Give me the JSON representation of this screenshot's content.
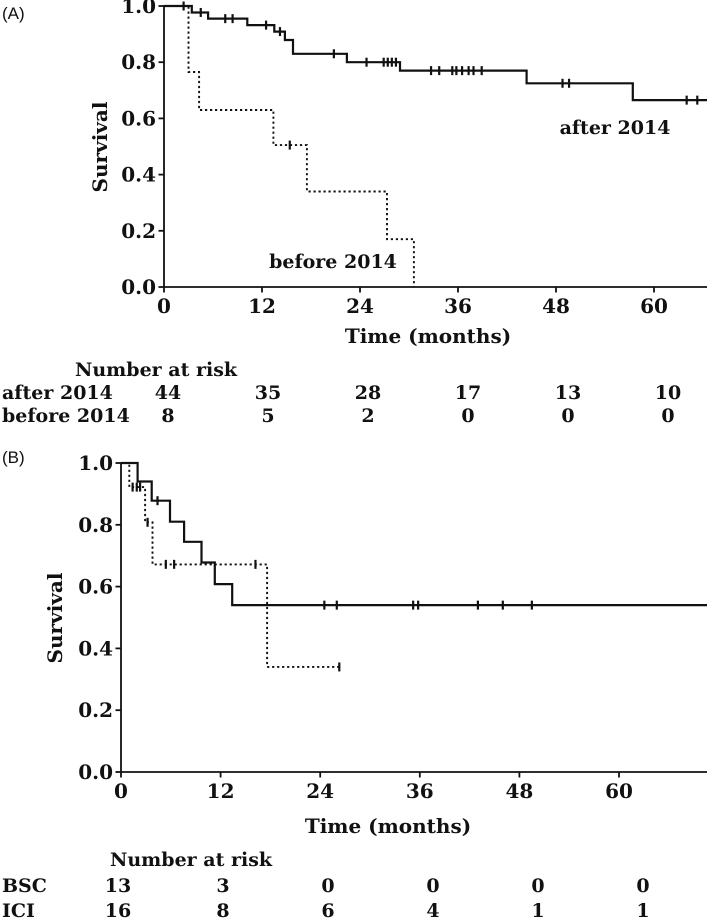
{
  "figure_colors": {
    "line": "#111111",
    "background": "#ffffff"
  },
  "chart_data": [
    {
      "id": "A",
      "panel": "(A)",
      "type": "line",
      "subtype": "kaplan-meier-step",
      "xlabel": "Time (months)",
      "ylabel": "Survival",
      "xticks": [
        0,
        12,
        24,
        36,
        48,
        60
      ],
      "ytick_labels": [
        "1.0",
        "0.8",
        "0.6",
        "0.4",
        "0.2",
        "0.0"
      ],
      "xlim": [
        0,
        66.5
      ],
      "ylim": [
        0.0,
        1.0
      ],
      "grid": false,
      "series": [
        {
          "name": "after 2014",
          "line_style": "solid",
          "start": 1.0,
          "end": 66.5,
          "steps": [
            [
              3.4,
              0.977
            ],
            [
              5.4,
              0.955
            ],
            [
              10.2,
              0.932
            ],
            [
              13.5,
              0.909
            ],
            [
              14.8,
              0.879
            ],
            [
              15.8,
              0.83
            ],
            [
              22.4,
              0.8
            ],
            [
              28.9,
              0.77
            ],
            [
              44.4,
              0.725
            ],
            [
              57.4,
              0.665
            ]
          ],
          "censors": [
            [
              2.4,
              1.0
            ],
            [
              4.5,
              0.977
            ],
            [
              7.5,
              0.955
            ],
            [
              8.4,
              0.955
            ],
            [
              12.5,
              0.932
            ],
            [
              14.2,
              0.909
            ],
            [
              20.8,
              0.83
            ],
            [
              24.8,
              0.8
            ],
            [
              26.9,
              0.8
            ],
            [
              27.4,
              0.8
            ],
            [
              27.9,
              0.8
            ],
            [
              28.4,
              0.8
            ],
            [
              32.7,
              0.77
            ],
            [
              33.7,
              0.77
            ],
            [
              35.3,
              0.77
            ],
            [
              35.8,
              0.77
            ],
            [
              36.5,
              0.77
            ],
            [
              37.3,
              0.77
            ],
            [
              37.9,
              0.77
            ],
            [
              38.9,
              0.77
            ],
            [
              48.8,
              0.725
            ],
            [
              49.6,
              0.725
            ],
            [
              64.0,
              0.665
            ],
            [
              65.3,
              0.665
            ]
          ],
          "label": {
            "text": "after 2014"
          }
        },
        {
          "name": "before 2014",
          "line_style": "dotted",
          "start": 1.0,
          "end": 30.6,
          "steps": [
            [
              3.0,
              0.765
            ],
            [
              4.3,
              0.63
            ],
            [
              13.4,
              0.505
            ],
            [
              17.5,
              0.34
            ],
            [
              27.3,
              0.17
            ],
            [
              30.6,
              0.0
            ]
          ],
          "censors": [
            [
              15.4,
              0.505
            ]
          ],
          "label": {
            "text": "before 2014"
          }
        }
      ],
      "at_risk": {
        "header": "Number at risk",
        "time_points": [
          0,
          12,
          24,
          36,
          48,
          60
        ],
        "rows": [
          {
            "label": "after 2014",
            "counts": [
              44,
              35,
              28,
              17,
              13,
              10
            ]
          },
          {
            "label": "before 2014",
            "counts": [
              8,
              5,
              2,
              0,
              0,
              0
            ]
          }
        ]
      }
    },
    {
      "id": "B",
      "panel": "(B)",
      "type": "line",
      "subtype": "kaplan-meier-step",
      "xlabel": "Time (months)",
      "ylabel": "Survival",
      "xticks": [
        0,
        12,
        24,
        36,
        48,
        60
      ],
      "ytick_labels": [
        "1.0",
        "0.8",
        "0.6",
        "0.4",
        "0.2",
        "0.0"
      ],
      "xlim": [
        0,
        70.6
      ],
      "ylim": [
        0.0,
        1.0
      ],
      "grid": false,
      "series": [
        {
          "name": "ICI",
          "line_style": "solid",
          "start": 1.0,
          "end": 70.6,
          "steps": [
            [
              2.0,
              0.94
            ],
            [
              3.7,
              0.878
            ],
            [
              5.9,
              0.81
            ],
            [
              7.6,
              0.745
            ],
            [
              9.7,
              0.678
            ],
            [
              11.3,
              0.608
            ],
            [
              13.4,
              0.54
            ]
          ],
          "censors": [
            [
              4.4,
              0.878
            ],
            [
              24.5,
              0.54
            ],
            [
              26.0,
              0.54
            ],
            [
              35.2,
              0.54
            ],
            [
              35.8,
              0.54
            ],
            [
              43.0,
              0.54
            ],
            [
              46.0,
              0.54
            ],
            [
              49.5,
              0.54
            ]
          ]
        },
        {
          "name": "BSC",
          "line_style": "dotted",
          "start": 1.0,
          "end": 26.6,
          "steps": [
            [
              1.0,
              0.922
            ],
            [
              2.9,
              0.808
            ],
            [
              3.8,
              0.672
            ],
            [
              17.6,
              0.34
            ]
          ],
          "censors": [
            [
              1.4,
              0.922
            ],
            [
              1.9,
              0.922
            ],
            [
              2.3,
              0.922
            ],
            [
              3.2,
              0.808
            ],
            [
              5.4,
              0.672
            ],
            [
              6.4,
              0.672
            ],
            [
              16.2,
              0.672
            ],
            [
              26.3,
              0.34
            ]
          ]
        }
      ],
      "at_risk": {
        "header": "Number at risk",
        "time_points": [
          0,
          12,
          24,
          36,
          48,
          60
        ],
        "rows": [
          {
            "label": "BSC",
            "counts": [
              13,
              3,
              0,
              0,
              0,
              0
            ]
          },
          {
            "label": "ICI",
            "counts": [
              16,
              8,
              6,
              4,
              1,
              1
            ]
          }
        ]
      }
    }
  ]
}
